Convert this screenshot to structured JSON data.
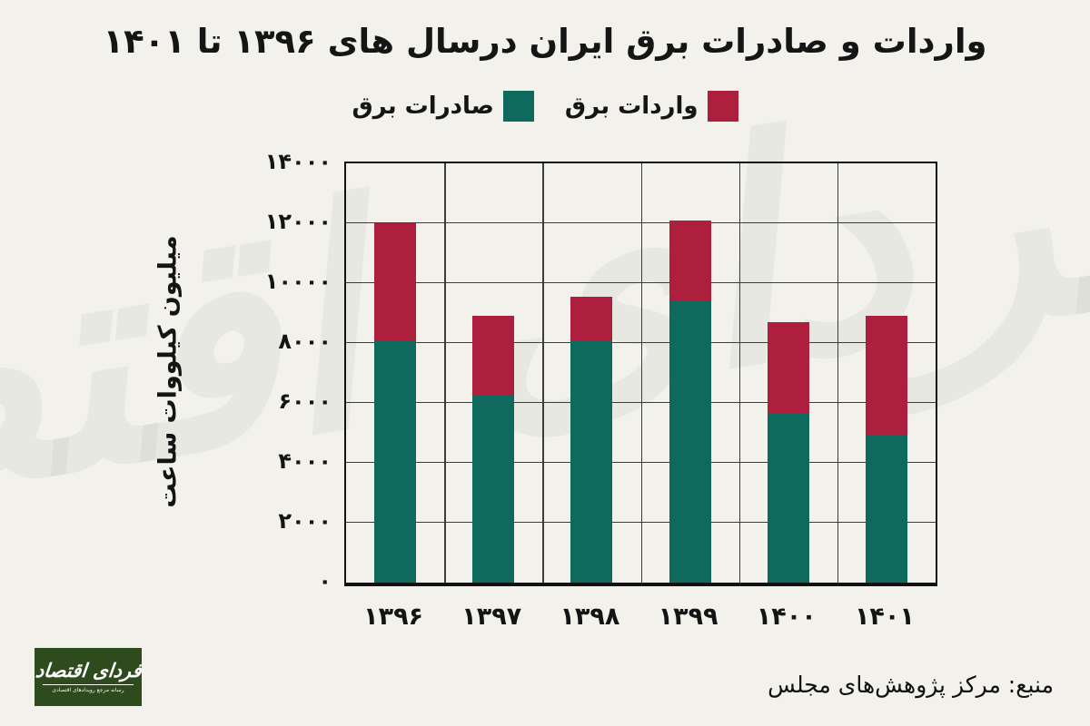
{
  "page": {
    "background_color": "#f3f1ec",
    "text_color": "#141414"
  },
  "title": "واردات و صادرات برق ایران درسال های ۱۳۹۶ تا ۱۴۰۱",
  "legend": {
    "imports_label": "واردات برق",
    "exports_label": "صادرات برق"
  },
  "source": "منبع: مرکز پژوهش‌های مجلس",
  "watermark_text": "فردای اقتصاد",
  "logo": {
    "name": "فردای اقتصاد",
    "tagline": "رسانه مرجع رویدادهای اقتصادی",
    "bg_color": "#2e4b1e",
    "text_color": "#ffffff"
  },
  "chart_data": {
    "type": "bar",
    "stacked": true,
    "title": "واردات و صادرات برق ایران درسال های ۱۳۹۶ تا ۱۴۰۱",
    "categories": [
      "۱۳۹۶",
      "۱۳۹۷",
      "۱۳۹۸",
      "۱۳۹۹",
      "۱۴۰۰",
      "۱۴۰۱"
    ],
    "categories_western": [
      1396,
      1397,
      1398,
      1399,
      1400,
      1401
    ],
    "series": [
      {
        "name": "صادرات برق",
        "color": "#0d6a5c",
        "values": [
          8100,
          6250,
          8100,
          9400,
          5650,
          4900
        ]
      },
      {
        "name": "واردات برق",
        "color": "#ae1f3d",
        "values": [
          3900,
          2650,
          1450,
          2700,
          3050,
          4000
        ]
      }
    ],
    "totals": [
      12000,
      8900,
      9550,
      12100,
      8700,
      8900
    ],
    "xlabel": "",
    "ylabel": "میلیون کیلووات ساعت",
    "ylim": [
      0,
      14000
    ],
    "yticks": [
      {
        "value": 0,
        "label": "۰"
      },
      {
        "value": 2000,
        "label": "۲۰۰۰"
      },
      {
        "value": 4000,
        "label": "۴۰۰۰"
      },
      {
        "value": 6000,
        "label": "۶۰۰۰"
      },
      {
        "value": 8000,
        "label": "۸۰۰۰"
      },
      {
        "value": 10000,
        "label": "۱۰۰۰۰"
      },
      {
        "value": 12000,
        "label": "۱۲۰۰۰"
      },
      {
        "value": 14000,
        "label": "۱۴۰۰۰"
      }
    ],
    "grid": true,
    "legend_position": "top"
  }
}
